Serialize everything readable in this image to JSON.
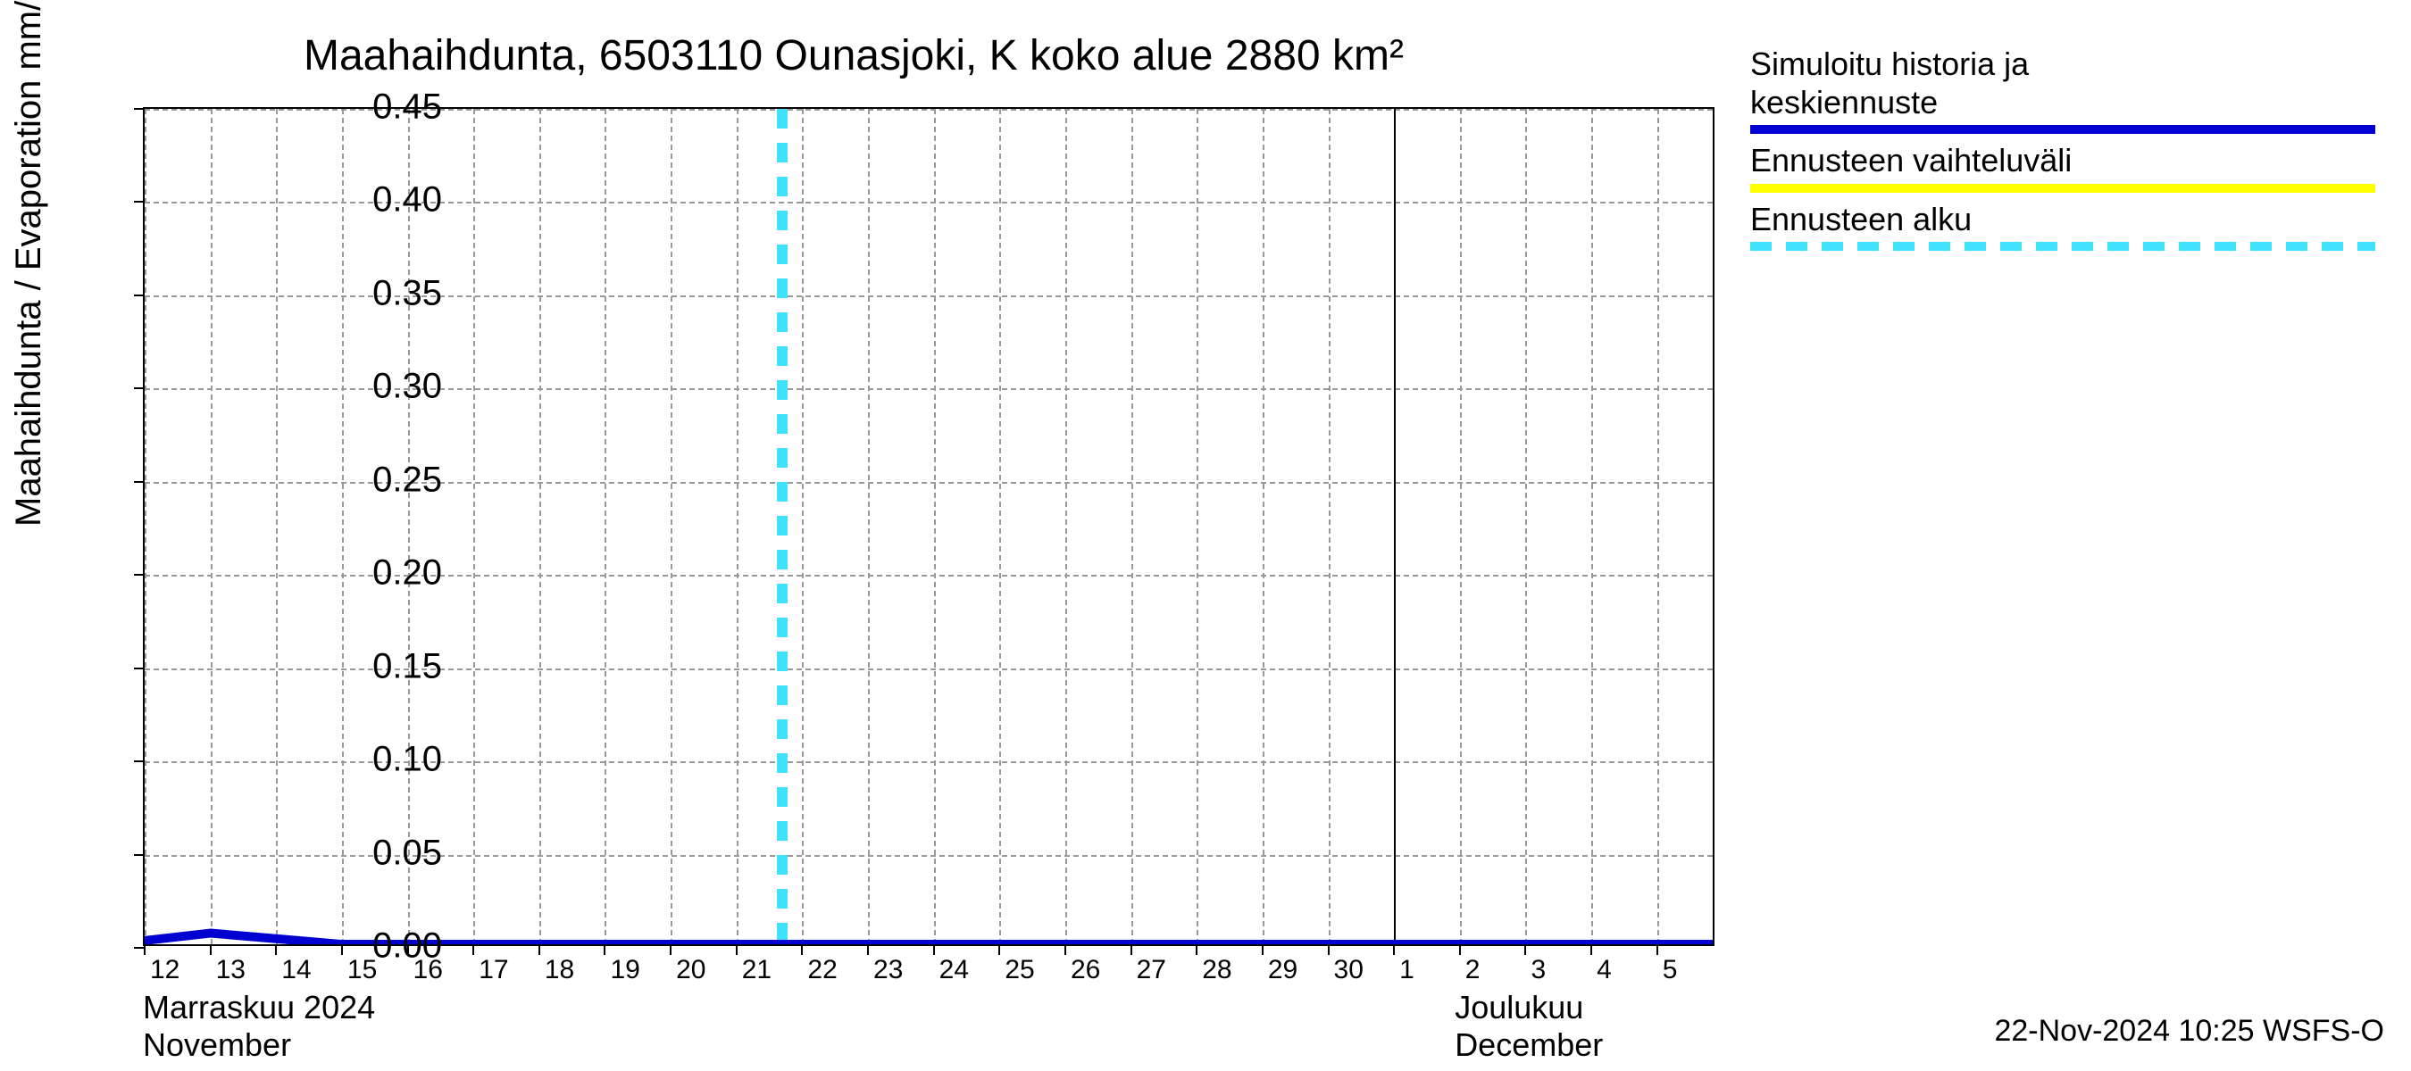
{
  "chart": {
    "type": "line",
    "title": "Maahaihdunta, 6503110 Ounasjoki, K koko alue 2880 km²",
    "y_axis_label": "Maahaihdunta / Evaporation   mm/d",
    "timestamp": "22-Nov-2024 10:25 WSFS-O",
    "background_color": "#ffffff",
    "grid_color": "#999999",
    "border_color": "#000000",
    "title_fontsize": 48,
    "label_fontsize": 40,
    "tick_fontsize_y": 40,
    "tick_fontsize_x": 30,
    "ylim": [
      0.0,
      0.45
    ],
    "yticks": [
      0.0,
      0.05,
      0.1,
      0.15,
      0.2,
      0.25,
      0.3,
      0.35,
      0.4,
      0.45
    ],
    "ytick_labels": [
      "0.00",
      "0.05",
      "0.10",
      "0.15",
      "0.20",
      "0.25",
      "0.30",
      "0.35",
      "0.40",
      "0.45"
    ],
    "x_days": [
      12,
      13,
      14,
      15,
      16,
      17,
      18,
      19,
      20,
      21,
      22,
      23,
      24,
      25,
      26,
      27,
      28,
      29,
      30,
      1,
      2,
      3,
      4,
      5
    ],
    "x_tick_labels": [
      "12",
      "13",
      "14",
      "15",
      "16",
      "17",
      "18",
      "19",
      "20",
      "21",
      "22",
      "23",
      "24",
      "25",
      "26",
      "27",
      "28",
      "29",
      "30",
      "1",
      "2",
      "3",
      "4",
      "5"
    ],
    "x_month1_fi": "Marraskuu 2024",
    "x_month1_en": "November",
    "x_month2_fi": "Joulukuu",
    "x_month2_en": "December",
    "x_month1_pos_pct": 0,
    "x_month2_pos_pct": 79.5,
    "x_major_tick_index": 19,
    "forecast_start_index": 9.7,
    "series": {
      "history_forecast": {
        "color": "#0000d0",
        "line_width": 10,
        "x_indices": [
          0,
          1,
          2,
          3,
          4,
          5,
          6,
          7,
          8,
          9,
          10,
          11,
          12,
          13,
          14,
          15,
          16,
          17,
          18,
          19,
          20,
          21,
          22,
          23,
          23.9
        ],
        "y_values": [
          0.002,
          0.006,
          0.003,
          0.0,
          0.0,
          0.0,
          0.0,
          0.0,
          0.0,
          0.0,
          0.0,
          0.0,
          0.0,
          0.0,
          0.0,
          0.0,
          0.0,
          0.0,
          0.0,
          0.0,
          0.0,
          0.0,
          0.0,
          0.0,
          0.0
        ]
      }
    },
    "legend": {
      "entries": [
        {
          "label_line1": "Simuloitu historia ja",
          "label_line2": "keskiennuste",
          "color": "#0000d0",
          "style": "solid",
          "line_width": 10
        },
        {
          "label_line1": "Ennusteen vaihteluväli",
          "label_line2": "",
          "color": "#ffff00",
          "style": "solid",
          "line_width": 10
        },
        {
          "label_line1": "Ennusteen alku",
          "label_line2": "",
          "color": "#40e0ff",
          "style": "dashed",
          "line_width": 10
        }
      ]
    },
    "forecast_line_color": "#40e0ff"
  }
}
